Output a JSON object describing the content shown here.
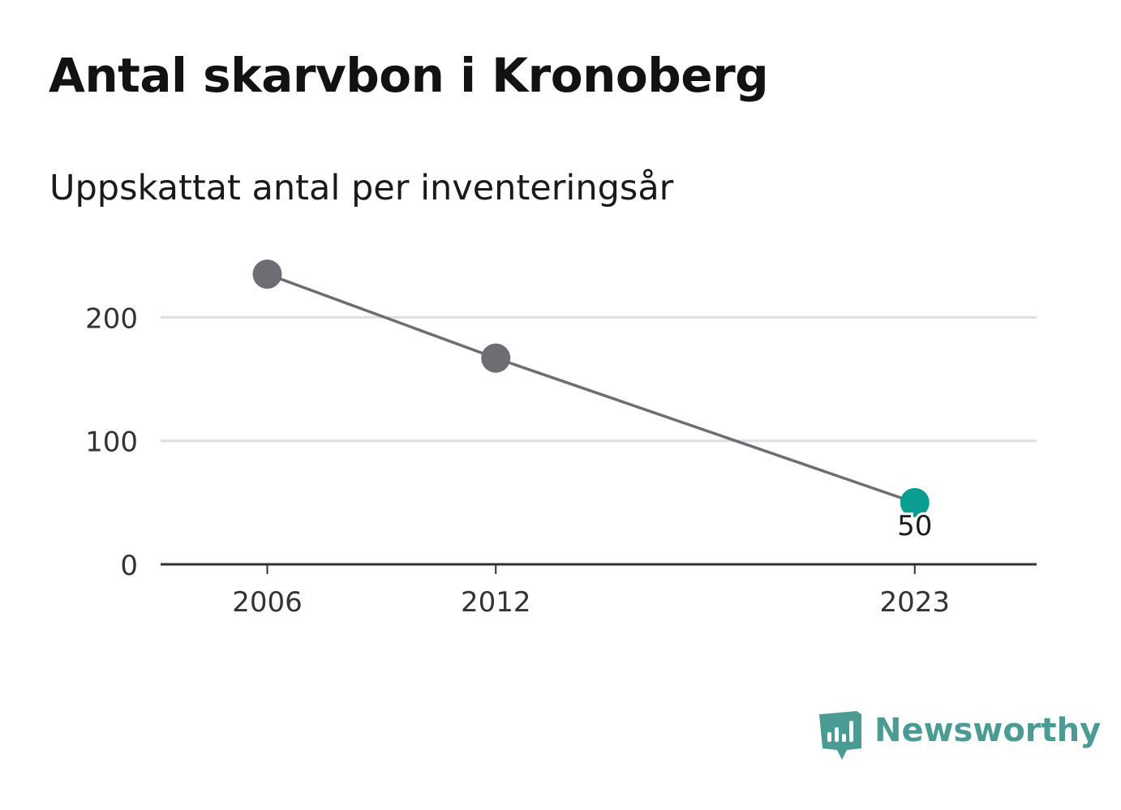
{
  "header": {
    "title": "Antal skarvbon i Kronoberg",
    "subtitle": "Uppskattat antal per inventeringsår"
  },
  "brand": {
    "name": "Newsworthy",
    "logo_icon": "newsworthy-bar-chart-icon",
    "color": "#4a9b94"
  },
  "colors": {
    "line": "#6e6d74",
    "highlight": "#0a9e92",
    "grid": "#dedede",
    "axis": "#333333"
  },
  "chart_data": {
    "type": "line",
    "title": "Antal skarvbon i Kronoberg",
    "subtitle": "Uppskattat antal per inventeringsår",
    "x": [
      2006,
      2012,
      2023
    ],
    "x_tick_labels": [
      "2006",
      "2012",
      "2023"
    ],
    "series": [
      {
        "values": [
          235,
          167,
          50
        ],
        "highlight_last": true
      }
    ],
    "data_labels": [
      {
        "x": 2023,
        "text": "50"
      }
    ],
    "y_ticks": [
      0,
      100,
      200
    ],
    "y_tick_labels": [
      "0",
      "100",
      "200"
    ],
    "xlim": [
      2003.2,
      2026.2
    ],
    "ylim": [
      0,
      260
    ],
    "grid": true,
    "legend": "none"
  }
}
